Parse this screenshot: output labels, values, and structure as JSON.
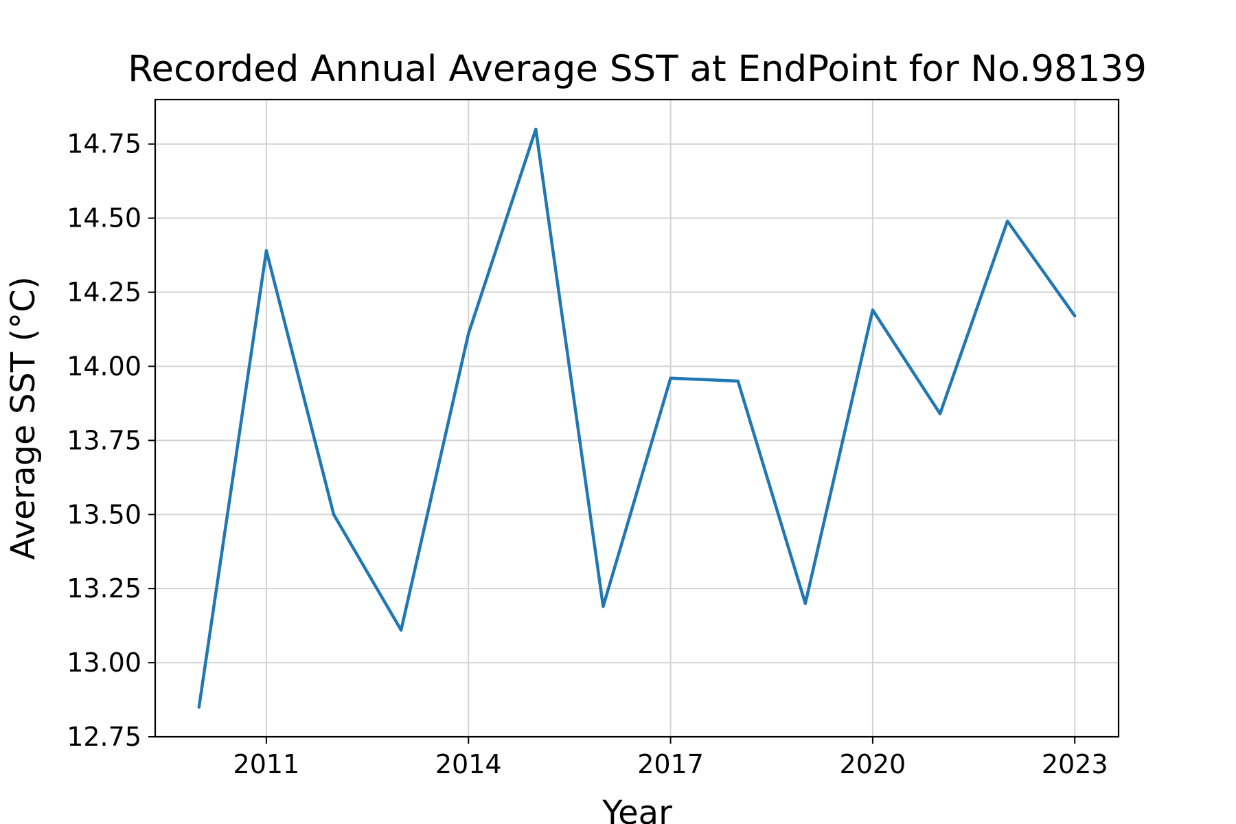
{
  "chart_data": {
    "type": "line",
    "title": "Recorded Annual Average SST at EndPoint for No.98139",
    "xlabel": "Year",
    "ylabel": "Average SST (°C)",
    "x": [
      2010,
      2011,
      2012,
      2013,
      2014,
      2015,
      2016,
      2017,
      2018,
      2019,
      2020,
      2021,
      2022,
      2023
    ],
    "series": [
      {
        "values": [
          12.85,
          14.39,
          13.5,
          13.11,
          14.11,
          14.8,
          13.19,
          13.96,
          13.95,
          13.2,
          14.19,
          13.84,
          14.49,
          14.17
        ]
      }
    ],
    "xlim": [
      2009.35,
      2023.65
    ],
    "ylim": [
      12.75,
      14.9
    ],
    "x_ticks": [
      2011,
      2014,
      2017,
      2020,
      2023
    ],
    "x_tick_labels": [
      "2011",
      "2014",
      "2017",
      "2020",
      "2023"
    ],
    "y_ticks": [
      12.75,
      13.0,
      13.25,
      13.5,
      13.75,
      14.0,
      14.25,
      14.5,
      14.75
    ],
    "y_tick_labels": [
      "12.75",
      "13.00",
      "13.25",
      "13.50",
      "13.75",
      "14.00",
      "14.25",
      "14.50",
      "14.75"
    ],
    "grid": true,
    "legend": "none",
    "colors": {
      "line": "#1f77b4",
      "grid": "#d3d3d3",
      "axes": "#000000"
    }
  }
}
